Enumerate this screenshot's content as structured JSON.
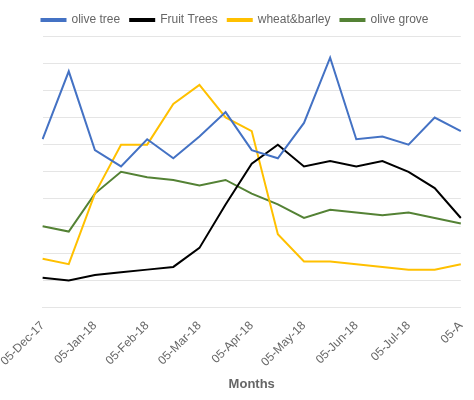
{
  "chart_data": {
    "type": "line",
    "xlabel": "Months",
    "categories": [
      "05-Dec-17",
      null,
      "05-Jan-18",
      null,
      "05-Feb-18",
      null,
      "05-Mar-18",
      null,
      "05-Apr-18",
      null,
      "05-May-18",
      null,
      "05-Jun-18",
      null,
      "05-Jul-18",
      null,
      "05-A"
    ],
    "series": [
      {
        "name": "olive tree",
        "color": "#4472C4",
        "values": [
          0.62,
          0.87,
          0.58,
          0.52,
          0.62,
          0.55,
          0.63,
          0.72,
          0.58,
          0.55,
          0.68,
          0.92,
          0.62,
          0.63,
          0.6,
          0.7,
          0.65
        ]
      },
      {
        "name": "Fruit Trees",
        "color": "#000000",
        "values": [
          0.11,
          0.1,
          0.12,
          0.13,
          0.14,
          0.15,
          0.22,
          0.38,
          0.53,
          0.6,
          0.52,
          0.54,
          0.52,
          0.54,
          0.5,
          0.44,
          0.33
        ]
      },
      {
        "name": "wheat&barley",
        "color": "#FFC000",
        "values": [
          0.18,
          0.16,
          0.42,
          0.6,
          0.6,
          0.75,
          0.82,
          0.7,
          0.65,
          0.27,
          0.17,
          0.17,
          0.16,
          0.15,
          0.14,
          0.14,
          0.16
        ]
      },
      {
        "name": "olive grove",
        "color": "#548235",
        "values": [
          0.3,
          0.28,
          0.42,
          0.5,
          0.48,
          0.47,
          0.45,
          0.47,
          0.42,
          0.38,
          0.33,
          0.36,
          0.35,
          0.34,
          0.35,
          0.33,
          0.31
        ]
      }
    ],
    "ylim": [
      0.0,
      1.0
    ],
    "yticks": [
      0.1,
      0.2,
      0.3,
      0.4,
      0.5,
      0.6,
      0.7,
      0.8,
      0.9,
      1.0
    ],
    "grid": true,
    "legend": "top",
    "tick_labels": "x"
  }
}
